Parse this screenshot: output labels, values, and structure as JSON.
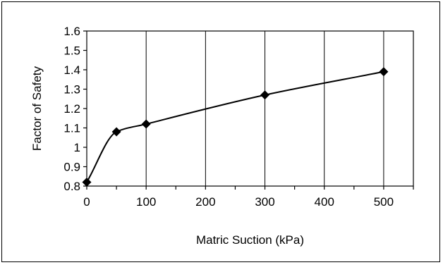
{
  "chart_data": {
    "type": "line",
    "title": "",
    "xlabel": "Matric Suction (kPa)",
    "ylabel": "Factor of Safety",
    "xlim": [
      0,
      550
    ],
    "ylim": [
      0.8,
      1.6
    ],
    "x_ticks": [
      "0",
      "100",
      "200",
      "300",
      "400",
      "500"
    ],
    "y_ticks": [
      "0.8",
      "0.9",
      "1",
      "1.1",
      "1.2",
      "1.3",
      "1.4",
      "1.5",
      "1.6"
    ],
    "x_tick_values": [
      0,
      100,
      200,
      300,
      400,
      500
    ],
    "y_tick_values": [
      0.8,
      0.9,
      1.0,
      1.1,
      1.2,
      1.3,
      1.4,
      1.5,
      1.6
    ],
    "x_minor_step": 50,
    "grid": "vertical",
    "smooth": true,
    "legend": "none",
    "series": [
      {
        "marker": "diamond",
        "color": "#000000",
        "x": [
          0,
          50,
          100,
          300,
          500
        ],
        "y": [
          0.82,
          1.08,
          1.12,
          1.27,
          1.39
        ]
      }
    ]
  }
}
